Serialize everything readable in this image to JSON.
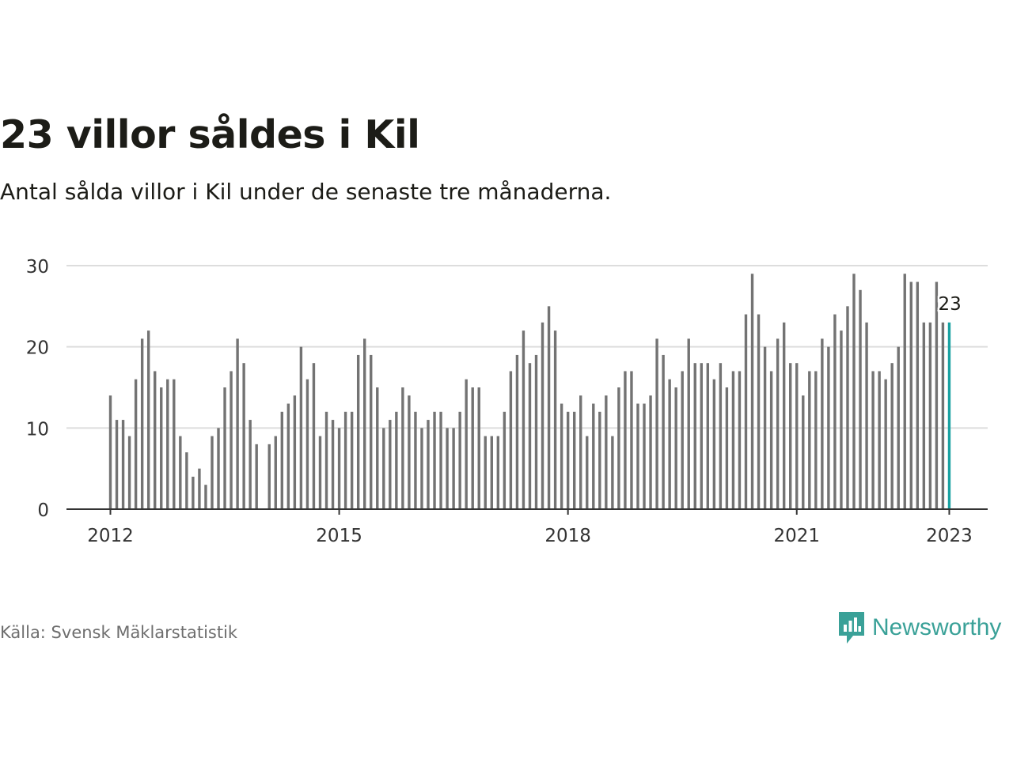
{
  "title": "23 villor såldes i Kil",
  "subtitle": "Antal sålda villor i Kil under de senaste tre månaderna.",
  "source": "Källa: Svensk Mäklarstatistik",
  "brand": "Newsworthy",
  "colors": {
    "bar": "#737373",
    "highlight": "#1aa2a2",
    "grid": "#dddddd",
    "axis": "#333333",
    "brand": "#3aa198"
  },
  "chart_data": {
    "type": "bar",
    "x_start": "2012-01",
    "x_ticks": [
      "2012",
      "2015",
      "2018",
      "2021",
      "2023"
    ],
    "y_ticks": [
      0,
      10,
      20,
      30
    ],
    "ylim": [
      0,
      30
    ],
    "grid": true,
    "highlight_label": "23",
    "values": [
      14,
      11,
      11,
      9,
      16,
      21,
      22,
      17,
      15,
      16,
      16,
      9,
      7,
      4,
      5,
      3,
      9,
      10,
      15,
      17,
      21,
      18,
      11,
      8,
      null,
      8,
      9,
      12,
      13,
      14,
      20,
      16,
      18,
      9,
      12,
      11,
      10,
      12,
      12,
      19,
      21,
      19,
      15,
      10,
      11,
      12,
      15,
      14,
      12,
      10,
      11,
      12,
      12,
      10,
      10,
      12,
      16,
      15,
      15,
      9,
      9,
      9,
      12,
      17,
      19,
      22,
      18,
      19,
      23,
      25,
      22,
      13,
      12,
      12,
      14,
      9,
      13,
      12,
      14,
      9,
      15,
      17,
      17,
      13,
      13,
      14,
      21,
      19,
      16,
      15,
      17,
      21,
      18,
      18,
      18,
      16,
      18,
      15,
      17,
      17,
      24,
      29,
      24,
      20,
      17,
      21,
      23,
      18,
      18,
      14,
      17,
      17,
      21,
      20,
      24,
      22,
      25,
      29,
      27,
      23,
      17,
      17,
      16,
      18,
      20,
      29,
      28,
      28,
      23,
      23,
      28,
      23,
      23
    ]
  }
}
